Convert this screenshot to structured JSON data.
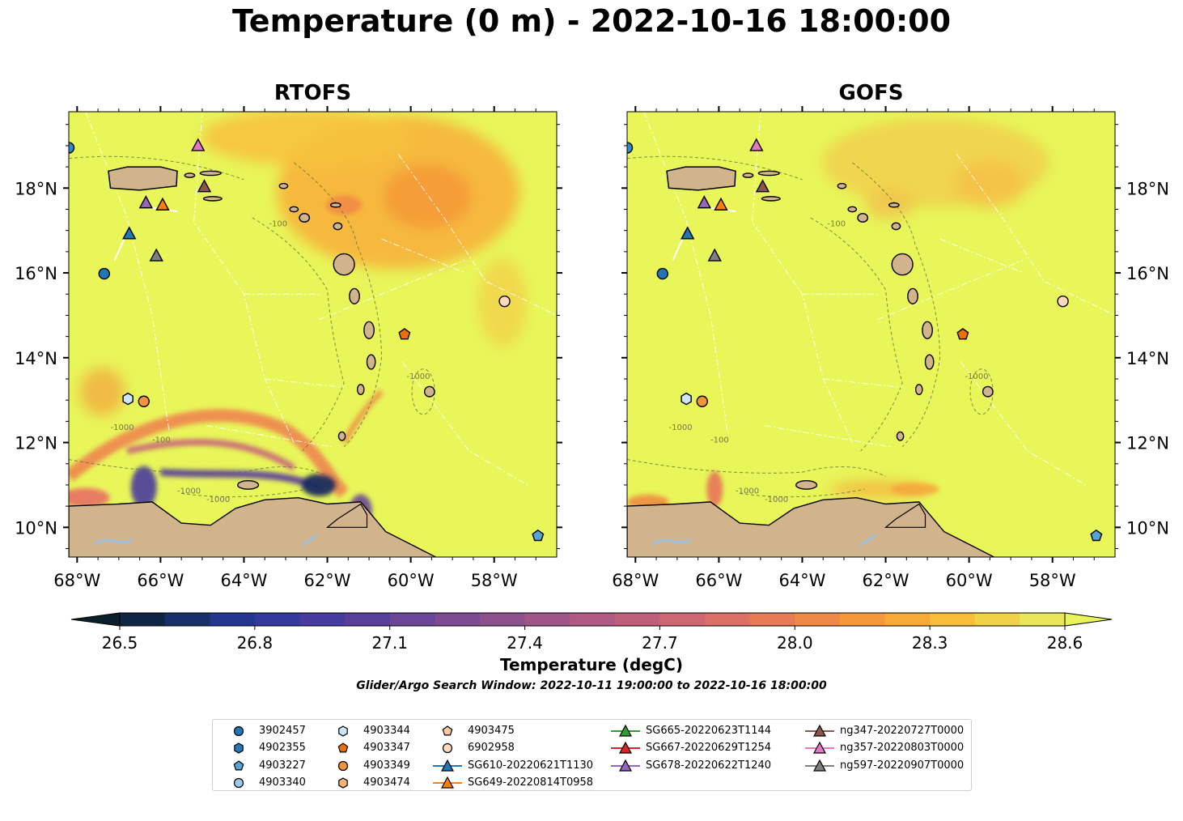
{
  "title": "Temperature (0 m) - 2022-10-16 18:00:00",
  "panels": [
    {
      "title": "RTOFS"
    },
    {
      "title": "GOFS"
    }
  ],
  "map": {
    "lon_range": [
      -68.2,
      -56.5
    ],
    "lat_range": [
      9.3,
      19.8
    ],
    "lon_ticks": [
      "68°W",
      "66°W",
      "64°W",
      "62°W",
      "60°W",
      "58°W"
    ],
    "lat_ticks": [
      "18°N",
      "16°N",
      "14°N",
      "12°N",
      "10°N"
    ],
    "bathymetry_labels": [
      "-100",
      "-1000"
    ]
  },
  "colorbar": {
    "label": "Temperature (degC)",
    "range": [
      26.5,
      28.6
    ],
    "ticks": [
      "26.5",
      "26.8",
      "27.1",
      "27.4",
      "27.7",
      "28.0",
      "28.3",
      "28.6"
    ],
    "extend": "both",
    "colors": [
      "#0b1e2c",
      "#0f2543",
      "#17306b",
      "#233690",
      "#35389e",
      "#473ba0",
      "#583f9c",
      "#6a4598",
      "#7c4b93",
      "#8e508d",
      "#a05488",
      "#b05982",
      "#c05f7b",
      "#cf6674",
      "#dc6f66",
      "#e87a56",
      "#f08846",
      "#f69838",
      "#f8aa35",
      "#f7bd3b",
      "#f0d148",
      "#e9e658",
      "#e8f55a"
    ]
  },
  "subtitle": "Glider/Argo Search Window: 2022-10-11 19:00:00 to 2022-10-16 18:00:00",
  "colors": {
    "land": "#d2b48c",
    "lake": "#9dc0e0",
    "ocean_default": "#e8f65a"
  },
  "legend": [
    {
      "label": "3902457",
      "marker": "circle",
      "color": "#1f77b4"
    },
    {
      "label": "4902355",
      "marker": "hexagon",
      "color": "#2878b8"
    },
    {
      "label": "4903227",
      "marker": "pentagon",
      "color": "#56a3d6"
    },
    {
      "label": "4903340",
      "marker": "circle",
      "color": "#9fc8ea"
    },
    {
      "label": "4903344",
      "marker": "hexagon",
      "color": "#cde7f7"
    },
    {
      "label": "4903347",
      "marker": "pentagon",
      "color": "#e8700b"
    },
    {
      "label": "4903349",
      "marker": "circle",
      "color": "#f3943c"
    },
    {
      "label": "4903474",
      "marker": "hexagon",
      "color": "#f8b075"
    },
    {
      "label": "4903475",
      "marker": "pentagon",
      "color": "#f8c99f"
    },
    {
      "label": "6902958",
      "marker": "circle",
      "color": "#fcd9bb"
    },
    {
      "label": "SG610-20220621T1130",
      "marker": "triangle",
      "color": "#1f77b4"
    },
    {
      "label": "SG649-20220814T0958",
      "marker": "triangle",
      "color": "#ff7f0e"
    },
    {
      "label": "SG665-20220623T1144",
      "marker": "triangle",
      "color": "#2ca02c"
    },
    {
      "label": "SG667-20220629T1254",
      "marker": "triangle",
      "color": "#d62728"
    },
    {
      "label": "SG678-20220622T1240",
      "marker": "triangle",
      "color": "#9467bd"
    },
    {
      "label": "ng347-20220727T0000",
      "marker": "triangle",
      "color": "#8c564b"
    },
    {
      "label": "ng357-20220803T0000",
      "marker": "triangle",
      "color": "#e377c2"
    },
    {
      "label": "ng597-20220907T0000",
      "marker": "triangle",
      "color": "#7f7f7f"
    }
  ],
  "markers": [
    {
      "id": "3902457",
      "marker": "circle",
      "color": "#1f77b4",
      "lon": -67.35,
      "lat": 15.98
    },
    {
      "id": "4902355",
      "marker": "circle",
      "color": "#2f8ccc",
      "lon": -68.2,
      "lat": 18.95
    },
    {
      "id": "4903227",
      "marker": "pentagon",
      "color": "#56a3d6",
      "lon": -56.95,
      "lat": 9.8
    },
    {
      "id": "4903344",
      "marker": "hexagon",
      "color": "#cde7f7",
      "lon": -66.78,
      "lat": 13.03
    },
    {
      "id": "4903347",
      "marker": "pentagon",
      "color": "#e8700b",
      "lon": -60.15,
      "lat": 14.55
    },
    {
      "id": "4903349",
      "marker": "circle",
      "color": "#f3943c",
      "lon": -66.4,
      "lat": 12.97
    },
    {
      "id": "6902958",
      "marker": "circle",
      "color": "#fcd9bb",
      "lon": -57.75,
      "lat": 15.33
    },
    {
      "id": "SG610-20220621T1130",
      "marker": "triangle",
      "color": "#1f77b4",
      "lon": -66.75,
      "lat": 16.92
    },
    {
      "id": "SG649-20220814T0958",
      "marker": "triangle",
      "color": "#ff7f0e",
      "lon": -65.95,
      "lat": 17.6
    },
    {
      "id": "SG678-20220622T1240",
      "marker": "triangle",
      "color": "#9467bd",
      "lon": -66.35,
      "lat": 17.65
    },
    {
      "id": "ng347-20220727T0000",
      "marker": "triangle",
      "color": "#8c564b",
      "lon": -64.95,
      "lat": 18.03
    },
    {
      "id": "ng357-20220803T0000",
      "marker": "triangle",
      "color": "#e377c2",
      "lon": -65.1,
      "lat": 19.0
    },
    {
      "id": "ng597-20220907T0000",
      "marker": "triangle",
      "color": "#7f7f7f",
      "lon": -66.1,
      "lat": 16.4
    }
  ]
}
